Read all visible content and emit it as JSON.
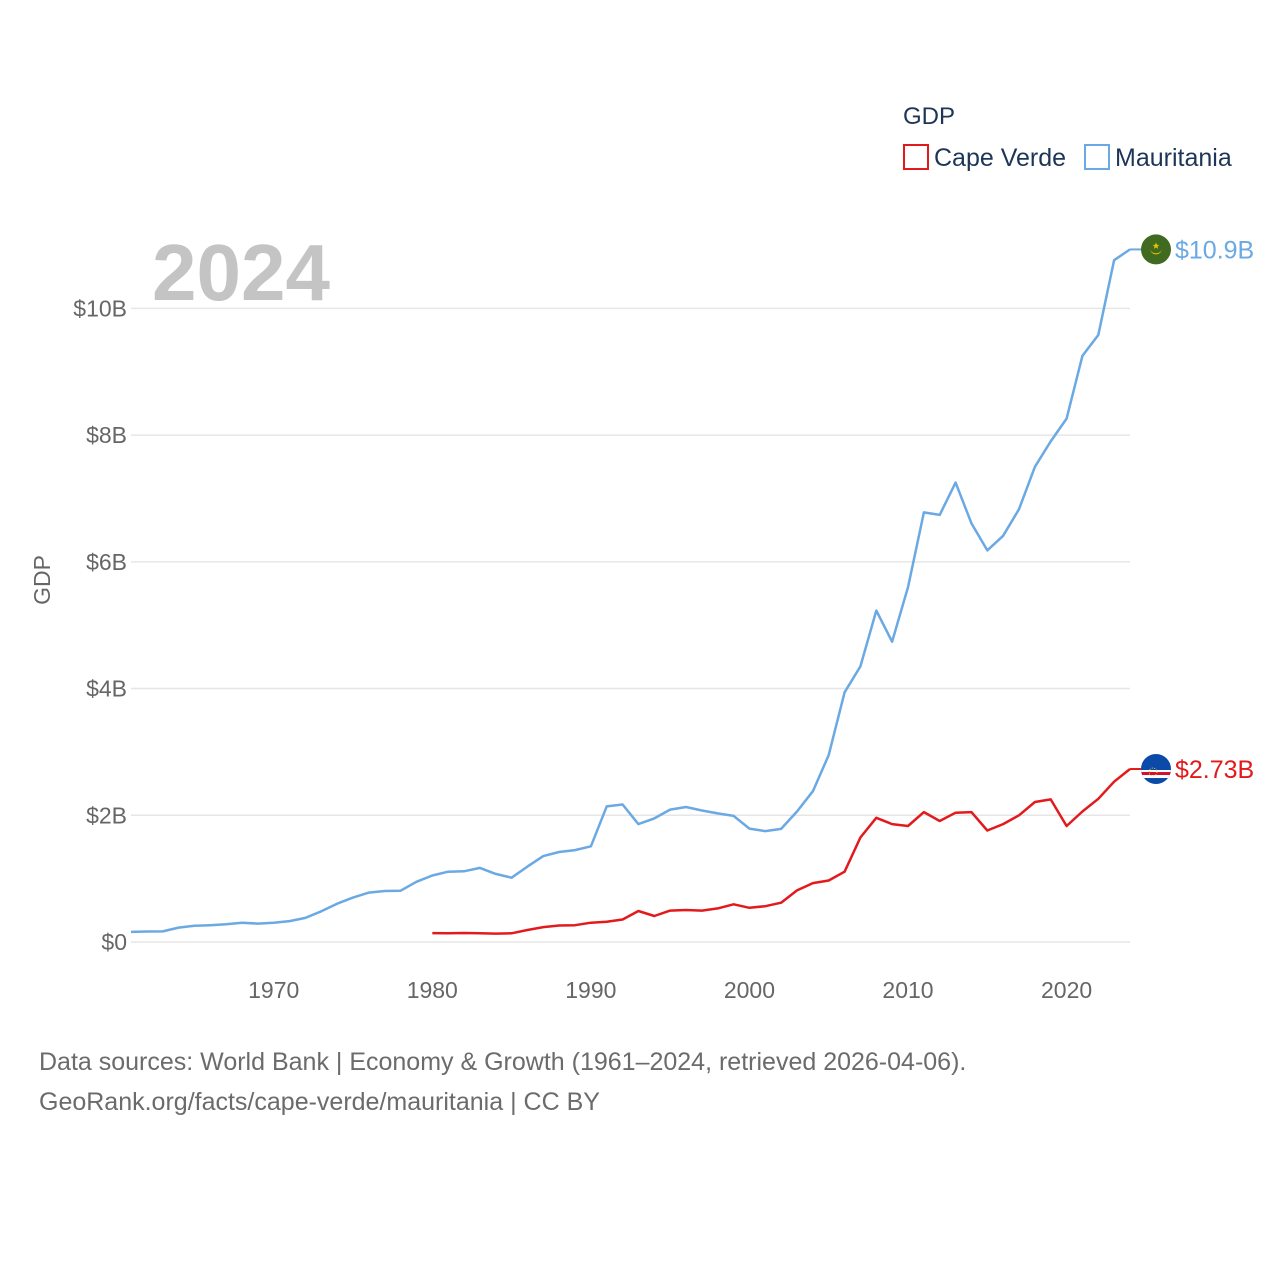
{
  "chart_data": {
    "type": "line",
    "title": "GDP",
    "year_label": "2024",
    "ylabel": "GDP",
    "xlabel": "",
    "xlim": [
      1961,
      2024
    ],
    "ylim": [
      0,
      11000000000
    ],
    "y_ticks": [
      {
        "value": 0,
        "label": "$0"
      },
      {
        "value": 2000000000,
        "label": "$2B"
      },
      {
        "value": 4000000000,
        "label": "$4B"
      },
      {
        "value": 6000000000,
        "label": "$6B"
      },
      {
        "value": 8000000000,
        "label": "$8B"
      },
      {
        "value": 10000000000,
        "label": "$10B"
      }
    ],
    "x_ticks": [
      {
        "value": 1970,
        "label": "1970"
      },
      {
        "value": 1980,
        "label": "1980"
      },
      {
        "value": 1990,
        "label": "1990"
      },
      {
        "value": 2000,
        "label": "2000"
      },
      {
        "value": 2010,
        "label": "2010"
      },
      {
        "value": 2020,
        "label": "2020"
      }
    ],
    "legend": {
      "title": "GDP",
      "position": "top-right"
    },
    "series": [
      {
        "name": "Cape Verde",
        "color": "#e31a1c",
        "end_label": "$2.73B",
        "flag_icon": "cape-verde-flag-icon",
        "x": [
          1980,
          1981,
          1982,
          1983,
          1984,
          1985,
          1986,
          1987,
          1988,
          1989,
          1990,
          1991,
          1992,
          1993,
          1994,
          1995,
          1996,
          1997,
          1998,
          1999,
          2000,
          2001,
          2002,
          2003,
          2004,
          2005,
          2006,
          2007,
          2008,
          2009,
          2010,
          2011,
          2012,
          2013,
          2014,
          2015,
          2016,
          2017,
          2018,
          2019,
          2020,
          2021,
          2022,
          2023,
          2024
        ],
        "values": [
          140000000,
          138000000,
          142000000,
          137000000,
          133000000,
          137000000,
          190000000,
          235000000,
          260000000,
          265000000,
          305000000,
          320000000,
          355000000,
          490000000,
          410000000,
          495000000,
          505000000,
          495000000,
          530000000,
          595000000,
          540000000,
          565000000,
          620000000,
          815000000,
          930000000,
          970000000,
          1110000000,
          1650000000,
          1960000000,
          1860000000,
          1830000000,
          2050000000,
          1910000000,
          2040000000,
          2050000000,
          1760000000,
          1860000000,
          2000000000,
          2210000000,
          2250000000,
          1830000000,
          2060000000,
          2260000000,
          2530000000,
          2730000000
        ]
      },
      {
        "name": "Mauritania",
        "color": "#6aa9e3",
        "end_label": "$10.9B",
        "flag_icon": "mauritania-flag-icon",
        "x": [
          1961,
          1962,
          1963,
          1964,
          1965,
          1966,
          1967,
          1968,
          1969,
          1970,
          1971,
          1972,
          1973,
          1974,
          1975,
          1976,
          1977,
          1978,
          1979,
          1980,
          1981,
          1982,
          1983,
          1984,
          1985,
          1986,
          1987,
          1988,
          1989,
          1990,
          1991,
          1992,
          1993,
          1994,
          1995,
          1996,
          1997,
          1998,
          1999,
          2000,
          2001,
          2002,
          2003,
          2004,
          2005,
          2006,
          2007,
          2008,
          2009,
          2010,
          2011,
          2012,
          2013,
          2014,
          2015,
          2016,
          2017,
          2018,
          2019,
          2020,
          2021,
          2022,
          2023,
          2024
        ],
        "values": [
          160000000,
          165000000,
          168000000,
          228000000,
          255000000,
          265000000,
          280000000,
          305000000,
          290000000,
          305000000,
          330000000,
          380000000,
          485000000,
          605000000,
          700000000,
          780000000,
          805000000,
          810000000,
          950000000,
          1050000000,
          1110000000,
          1115000000,
          1170000000,
          1075000000,
          1015000000,
          1190000000,
          1355000000,
          1420000000,
          1450000000,
          1510000000,
          2140000000,
          2170000000,
          1860000000,
          1950000000,
          2090000000,
          2130000000,
          2075000000,
          2030000000,
          1990000000,
          1790000000,
          1750000000,
          1785000000,
          2060000000,
          2380000000,
          2950000000,
          3940000000,
          4350000000,
          5230000000,
          4740000000,
          5600000000,
          6780000000,
          6740000000,
          7250000000,
          6610000000,
          6180000000,
          6410000000,
          6830000000,
          7500000000,
          7900000000,
          8260000000,
          9250000000,
          9580000000,
          10760000000,
          10930000000
        ]
      }
    ]
  },
  "source": {
    "line1": "Data sources: World Bank | Economy & Growth (1961–2024, retrieved 2026-04-06).",
    "line2": "GeoRank.org/facts/cape-verde/mauritania | CC BY"
  }
}
